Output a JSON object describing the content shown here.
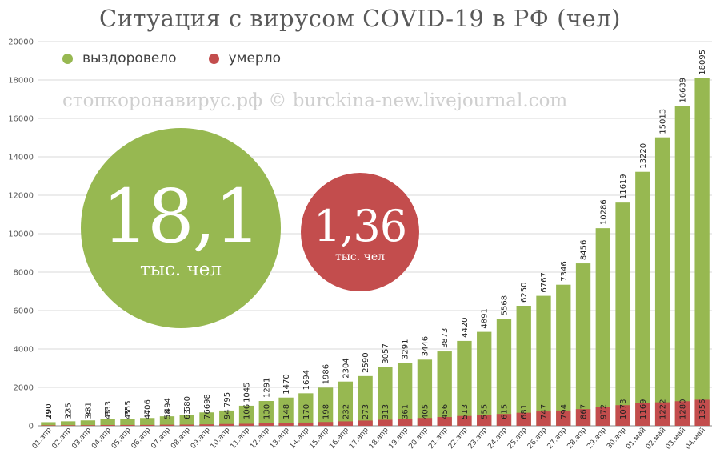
{
  "title": "Ситуация с вирусом COVID-19 в РФ (чел)",
  "watermark": "стопкоронавирус.рф © burckina-new.livejournal.com",
  "legend": [
    {
      "label": "выздоровело",
      "color": "#97b851"
    },
    {
      "label": "умерло",
      "color": "#c34d4d"
    }
  ],
  "bubbles": {
    "recovered": {
      "value": "18,1",
      "unit": "тыс. чел",
      "color": "#97b851"
    },
    "deaths": {
      "value": "1,36",
      "unit": "тыс. чел",
      "color": "#c34d4d"
    }
  },
  "chart_data": {
    "type": "bar",
    "ylim": [
      0,
      20000
    ],
    "yticks": [
      0,
      2000,
      4000,
      6000,
      8000,
      10000,
      12000,
      14000,
      16000,
      18000,
      20000
    ],
    "grid": true,
    "legend_position": "top-left",
    "categories": [
      "01.апр",
      "02.апр",
      "03.апр",
      "04.апр",
      "05.апр",
      "06.апр",
      "07.апр",
      "08.апр",
      "09.апр",
      "10.апр",
      "11.апр",
      "12.апр",
      "13.апр",
      "14.апр",
      "15.апр",
      "16.апр",
      "17.апр",
      "18.апр",
      "19.апр",
      "20.апр",
      "21.апр",
      "22.апр",
      "23.апр",
      "24.апр",
      "25.апр",
      "26.апр",
      "27.апр",
      "28.апр",
      "29.апр",
      "30.апр",
      "01.май",
      "02.май",
      "03.май",
      "04.май"
    ],
    "series": [
      {
        "name": "выздоровело",
        "color": "#97b851",
        "values": [
          190,
          235,
          281,
          333,
          355,
          406,
          494,
          580,
          698,
          795,
          1045,
          1291,
          1470,
          1694,
          1986,
          2304,
          2590,
          3057,
          3291,
          3446,
          3873,
          4420,
          4891,
          5568,
          6250,
          6767,
          7346,
          8456,
          10286,
          11619,
          13220,
          15013,
          16639,
          18095
        ]
      },
      {
        "name": "умерло",
        "color": "#c34d4d",
        "values": [
          29,
          32,
          34,
          43,
          45,
          47,
          58,
          63,
          76,
          94,
          106,
          130,
          148,
          170,
          198,
          232,
          273,
          313,
          361,
          405,
          456,
          513,
          555,
          615,
          681,
          747,
          794,
          867,
          972,
          1073,
          1169,
          1222,
          1280,
          1356
        ]
      }
    ]
  }
}
